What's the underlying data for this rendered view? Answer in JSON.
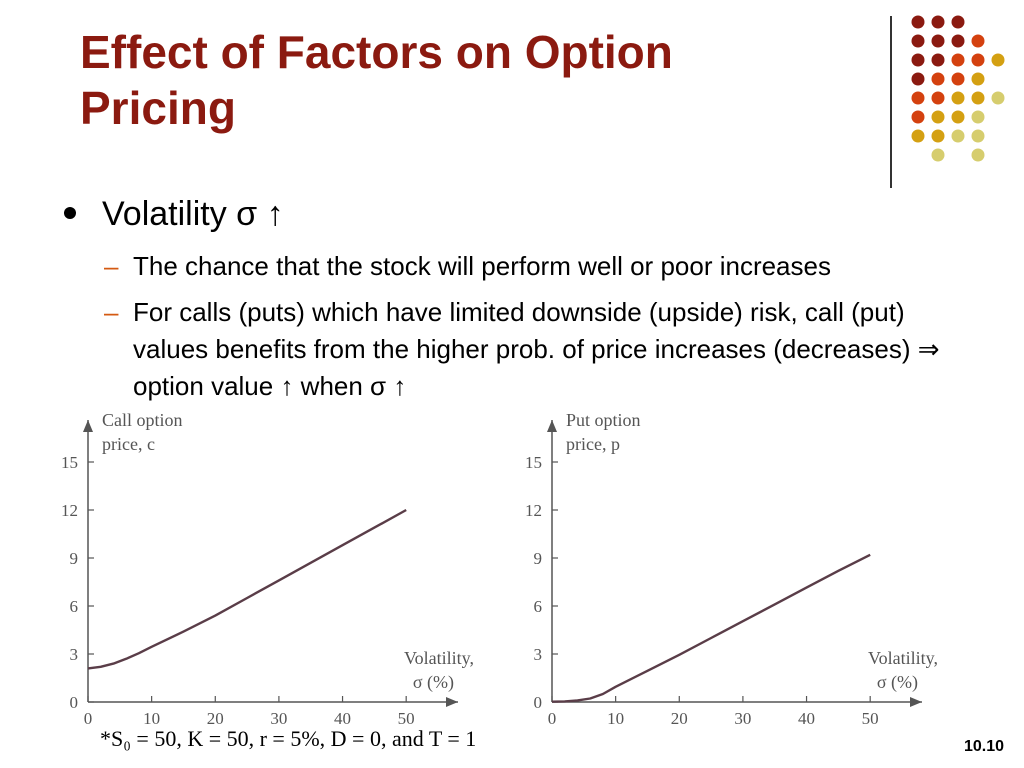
{
  "slide": {
    "title_line1": "Effect of Factors on Option",
    "title_line2": "Pricing",
    "bullet": "Volatility σ ↑",
    "sub1": "The chance that the stock will perform well or poor increases",
    "sub2": "For calls (puts) which have limited downside (upside) risk, call (put) values benefits from the higher prob. of price increases (decreases) ⇒ option value ↑ when σ ↑",
    "dash": "–",
    "footnote": "*S₀ = 50, K = 50, r = 5%, D = 0, and T = 1",
    "slide_number": "10.10"
  },
  "colors": {
    "title": "#8b1a10",
    "dash": "#d45a12",
    "curve": "#5a3d48",
    "dot_palette": [
      "#8b1a10",
      "#d4410f",
      "#d4a012",
      "#d6cd6e"
    ]
  },
  "chart_data": [
    {
      "type": "line",
      "ylabel_line1": "Call option",
      "ylabel_line2": "price, c",
      "xlabel_line1": "Volatility,",
      "xlabel_line2": "σ (%)",
      "xticks": [
        "0",
        "10",
        "20",
        "30",
        "40",
        "50"
      ],
      "yticks": [
        "0",
        "3",
        "6",
        "9",
        "12",
        "15"
      ],
      "xlim": [
        0,
        55
      ],
      "ylim": [
        0,
        16.5
      ],
      "series": [
        {
          "x": [
            0,
            2,
            4,
            6,
            8,
            10,
            15,
            20,
            25,
            30,
            35,
            40,
            45,
            50
          ],
          "y": [
            2.1,
            2.2,
            2.4,
            2.7,
            3.05,
            3.45,
            4.4,
            5.4,
            6.5,
            7.6,
            8.7,
            9.8,
            10.9,
            12.0
          ]
        }
      ]
    },
    {
      "type": "line",
      "ylabel_line1": "Put option",
      "ylabel_line2": "price, p",
      "xlabel_line1": "Volatility,",
      "xlabel_line2": "σ (%)",
      "xticks": [
        "0",
        "10",
        "20",
        "30",
        "40",
        "50"
      ],
      "yticks": [
        "0",
        "3",
        "6",
        "9",
        "12",
        "15"
      ],
      "xlim": [
        0,
        55
      ],
      "ylim": [
        0,
        16.5
      ],
      "series": [
        {
          "x": [
            0,
            2,
            4,
            6,
            8,
            10,
            15,
            20,
            25,
            30,
            35,
            40,
            45,
            50
          ],
          "y": [
            0.02,
            0.04,
            0.1,
            0.22,
            0.5,
            0.95,
            1.95,
            2.95,
            4.0,
            5.05,
            6.1,
            7.15,
            8.2,
            9.2
          ]
        }
      ]
    }
  ]
}
